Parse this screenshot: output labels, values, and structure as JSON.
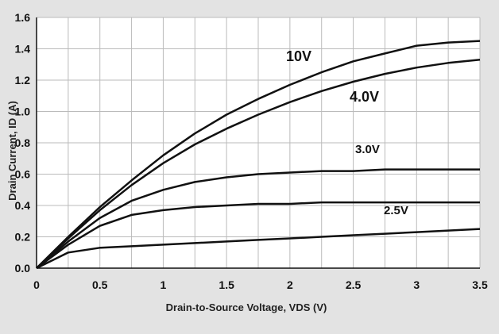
{
  "chart_data": {
    "type": "line",
    "title": "",
    "xlabel": "Drain-to-Source Voltage, VDS (V)",
    "ylabel": "Drain Current, ID (A)",
    "xlim": [
      0,
      3.5
    ],
    "ylim": [
      0,
      1.6
    ],
    "x_ticks": [
      "0",
      "0.5",
      "1",
      "1.5",
      "2",
      "2.5",
      "3",
      "3.5"
    ],
    "y_ticks": [
      "0.0",
      "0.2",
      "0.4",
      "0.6",
      "0.8",
      "1.0",
      "1.2",
      "1.4",
      "1.6"
    ],
    "grid": true,
    "series": [
      {
        "name": "10V",
        "x": [
          0,
          0.25,
          0.5,
          0.75,
          1.0,
          1.25,
          1.5,
          1.75,
          2.0,
          2.25,
          2.5,
          2.75,
          3.0,
          3.25,
          3.5
        ],
        "y": [
          0,
          0.2,
          0.39,
          0.56,
          0.72,
          0.86,
          0.98,
          1.08,
          1.17,
          1.25,
          1.32,
          1.37,
          1.42,
          1.44,
          1.45
        ]
      },
      {
        "name": "4.0V",
        "x": [
          0,
          0.25,
          0.5,
          0.75,
          1.0,
          1.25,
          1.5,
          1.75,
          2.0,
          2.25,
          2.5,
          2.75,
          3.0,
          3.25,
          3.5
        ],
        "y": [
          0,
          0.19,
          0.37,
          0.53,
          0.67,
          0.79,
          0.89,
          0.98,
          1.06,
          1.13,
          1.19,
          1.24,
          1.28,
          1.31,
          1.33
        ]
      },
      {
        "name": "3.0V",
        "x": [
          0,
          0.25,
          0.5,
          0.75,
          1.0,
          1.25,
          1.5,
          1.75,
          2.0,
          2.25,
          2.5,
          2.75,
          3.0,
          3.25,
          3.5
        ],
        "y": [
          0,
          0.17,
          0.32,
          0.43,
          0.5,
          0.55,
          0.58,
          0.6,
          0.61,
          0.62,
          0.62,
          0.63,
          0.63,
          0.63,
          0.63
        ]
      },
      {
        "name": "2.5V",
        "x": [
          0,
          0.25,
          0.5,
          0.75,
          1.0,
          1.25,
          1.5,
          1.75,
          2.0,
          2.25,
          2.5,
          2.75,
          3.0,
          3.25,
          3.5
        ],
        "y": [
          0,
          0.15,
          0.27,
          0.34,
          0.37,
          0.39,
          0.4,
          0.41,
          0.41,
          0.42,
          0.42,
          0.42,
          0.42,
          0.42,
          0.42
        ]
      },
      {
        "name": "",
        "x": [
          0,
          0.25,
          0.5,
          0.75,
          1.0,
          1.25,
          1.5,
          1.75,
          2.0,
          2.25,
          2.5,
          2.75,
          3.0,
          3.25,
          3.5
        ],
        "y": [
          0,
          0.1,
          0.13,
          0.14,
          0.15,
          0.16,
          0.17,
          0.18,
          0.19,
          0.2,
          0.21,
          0.22,
          0.23,
          0.24,
          0.25
        ]
      }
    ],
    "annotations": [
      "10V",
      "4.0V",
      "3.0V",
      "2.5V"
    ],
    "colors": {
      "background": "#e3e3e3",
      "plot_area": "#ffffff",
      "grid": "#bbbbbb",
      "line": "#111111"
    }
  }
}
